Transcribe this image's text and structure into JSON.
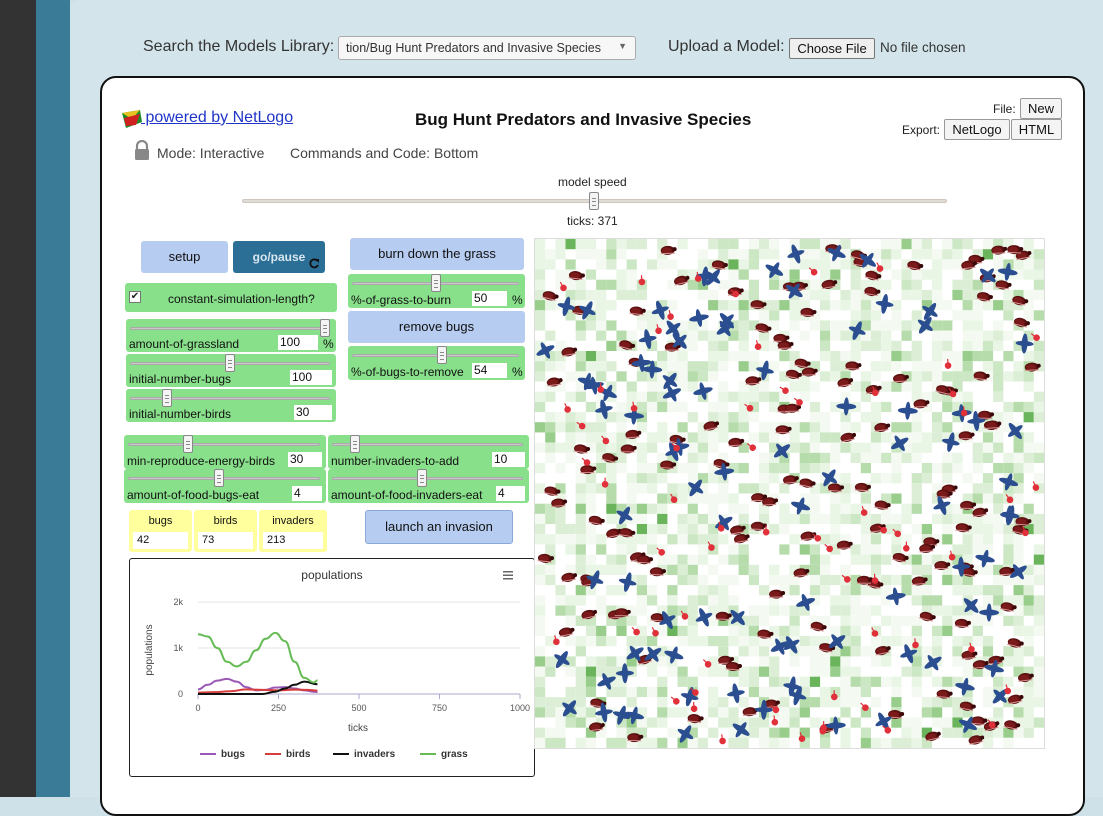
{
  "search": {
    "label": "Search the Models Library:",
    "selected": "tion/Bug Hunt Predators and Invasive Species"
  },
  "upload": {
    "label": "Upload a Model:",
    "button": "Choose File",
    "status": "No file chosen"
  },
  "header": {
    "powered_by": " powered by NetLogo",
    "title": "Bug Hunt Predators and Invasive Species",
    "mode": "Mode: Interactive",
    "commands": "Commands and Code: Bottom",
    "file_label": "File:",
    "new_label": "New",
    "export_label": "Export:",
    "export_netlogo": "NetLogo",
    "export_html": "HTML"
  },
  "speed": {
    "label": "model speed",
    "ticks": "ticks: 371"
  },
  "buttons": {
    "setup": "setup",
    "go": "go/pause",
    "burn": "burn down the grass",
    "remove": "remove bugs",
    "launch": "launch an invasion"
  },
  "switch": {
    "label": "constant-simulation-length?",
    "checked": true
  },
  "sliders": [
    {
      "name": "amount-of-grassland",
      "value": "100",
      "unit": "%",
      "level": 1.0
    },
    {
      "name": "initial-number-bugs",
      "value": "100",
      "level": 0.5
    },
    {
      "name": "initial-number-birds",
      "value": "30",
      "level": 0.17
    },
    {
      "name": "%-of-grass-to-burn",
      "value": "50",
      "unit": "%",
      "level": 0.5
    },
    {
      "name": "%-of-bugs-to-remove",
      "value": "54",
      "unit": "%",
      "level": 0.54
    },
    {
      "name": "min-reproduce-energy-birds",
      "value": "30",
      "level": 0.3
    },
    {
      "name": "number-invaders-to-add",
      "value": "10",
      "level": 0.1
    },
    {
      "name": "amount-of-food-bugs-eat",
      "value": "4",
      "level": 0.47
    },
    {
      "name": "amount-of-food-invaders-eat",
      "value": "4",
      "level": 0.47
    }
  ],
  "monitors": [
    {
      "label": "bugs",
      "value": "42"
    },
    {
      "label": "birds",
      "value": "73"
    },
    {
      "label": "invaders",
      "value": "213"
    }
  ],
  "colors": {
    "bugs": "#9b59b6",
    "birds": "#d63d3d",
    "invaders": "#111111",
    "grass": "#66bb55",
    "slider": "#89e08b",
    "button": "#b6ccf0",
    "monitor": "#ffff9e",
    "go": "#2b6e96"
  },
  "chart_data": {
    "type": "line",
    "title": "populations",
    "xlabel": "ticks",
    "ylabel": "populations",
    "xlim": [
      0,
      1000
    ],
    "ylim": [
      0,
      2000
    ],
    "x_ticks": [
      "0",
      "250",
      "500",
      "750",
      "1000"
    ],
    "y_ticks": [
      "0",
      "1k",
      "2k"
    ],
    "legend_position": "bottom",
    "series": [
      {
        "name": "bugs",
        "x": [
          0,
          30,
          60,
          90,
          120,
          150,
          180,
          210,
          240,
          270,
          300,
          330,
          360,
          371
        ],
        "y": [
          100,
          200,
          290,
          330,
          270,
          150,
          80,
          90,
          140,
          150,
          120,
          80,
          50,
          42
        ]
      },
      {
        "name": "birds",
        "x": [
          0,
          50,
          100,
          150,
          200,
          250,
          300,
          340,
          371
        ],
        "y": [
          30,
          40,
          60,
          100,
          90,
          80,
          95,
          90,
          73
        ]
      },
      {
        "name": "invaders",
        "x": [
          0,
          200,
          240,
          270,
          300,
          330,
          371
        ],
        "y": [
          0,
          0,
          50,
          120,
          200,
          270,
          213
        ]
      },
      {
        "name": "grass",
        "x": [
          0,
          30,
          60,
          90,
          120,
          150,
          180,
          210,
          240,
          270,
          300,
          330,
          360,
          371
        ],
        "y": [
          1300,
          1250,
          1000,
          700,
          600,
          700,
          950,
          1200,
          1330,
          1150,
          700,
          350,
          250,
          300
        ]
      }
    ]
  }
}
